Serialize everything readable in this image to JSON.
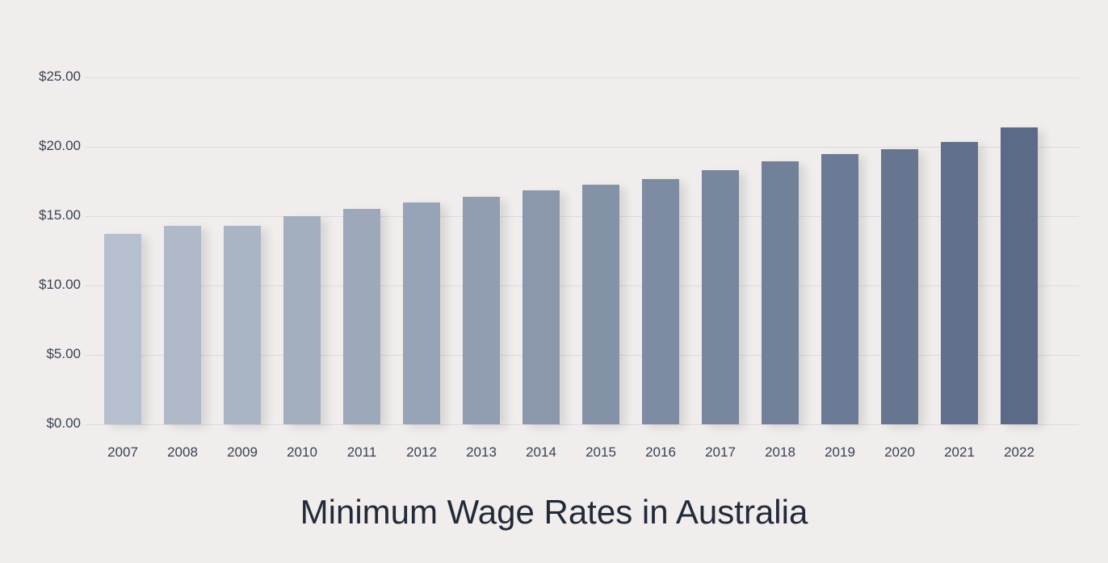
{
  "chart_data": {
    "type": "bar",
    "title": "Minimum Wage Rates in Australia",
    "xlabel": "",
    "ylabel": "",
    "categories": [
      "2007",
      "2008",
      "2009",
      "2010",
      "2011",
      "2012",
      "2013",
      "2014",
      "2015",
      "2016",
      "2017",
      "2018",
      "2019",
      "2020",
      "2021",
      "2022"
    ],
    "values": [
      13.74,
      14.31,
      14.31,
      15.0,
      15.51,
      15.96,
      16.37,
      16.87,
      17.29,
      17.7,
      18.29,
      18.93,
      19.49,
      19.84,
      20.33,
      21.38
    ],
    "ylim": [
      0,
      25
    ],
    "yticks": [
      "$0.00",
      "$5.00",
      "$10.00",
      "$15.00",
      "$20.00",
      "$25.00"
    ],
    "grid": true,
    "legend": null,
    "colors": {
      "bar_start": "#b5bfcd",
      "bar_end": "#5a6a87",
      "background": "#f0edec",
      "gridline": "#dcdbdf",
      "text": "#3a4254",
      "title": "#222a3a"
    }
  }
}
